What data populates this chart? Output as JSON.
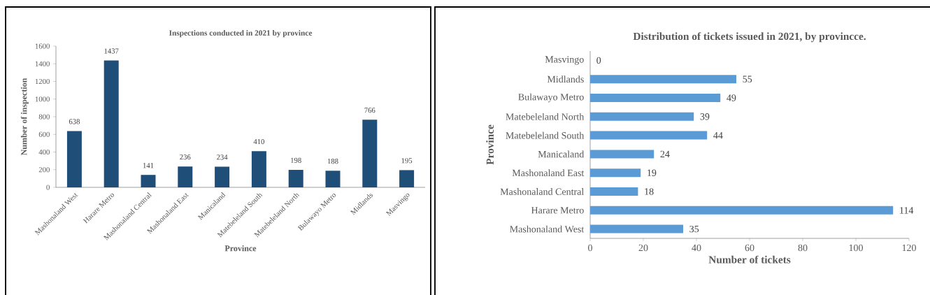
{
  "chart_data": [
    {
      "type": "bar",
      "title": "Inspections conducted in 2021 by province",
      "xlabel": "Province",
      "ylabel": "Number of inspection",
      "categories": [
        "Mashonaland West",
        "Harare Metro",
        "Mashonaland Central",
        "Mashonaland East",
        "Manicaland",
        "Matebeleland South",
        "Matebeleland North",
        "Bulawayo Metro",
        "Midlands",
        "Masvingo"
      ],
      "values": [
        638,
        1437,
        141,
        236,
        234,
        410,
        198,
        188,
        766,
        195
      ],
      "color": "#1f4e79",
      "ylim": [
        0,
        1600
      ],
      "yticks": [
        0,
        200,
        400,
        600,
        800,
        1000,
        1200,
        1400,
        1600
      ],
      "data_labels": true
    },
    {
      "type": "bar",
      "orientation": "horizontal",
      "title": "Distribution of tickets issued in 2021, by provincce.",
      "xlabel": "Number of tickets",
      "ylabel": "Province",
      "categories": [
        "Masvingo",
        "Midlands",
        "Bulawayo Metro",
        "Matebeleland North",
        "Matebeleland South",
        "Manicaland",
        "Mashonaland East",
        "Mashonaland Central",
        "Harare Metro",
        "Mashonaland West"
      ],
      "values": [
        0,
        55,
        49,
        39,
        44,
        24,
        19,
        18,
        114,
        35
      ],
      "color": "#5b9bd5",
      "xlim": [
        0,
        120
      ],
      "xticks": [
        0,
        20,
        40,
        60,
        80,
        100,
        120
      ],
      "data_labels": true
    }
  ]
}
